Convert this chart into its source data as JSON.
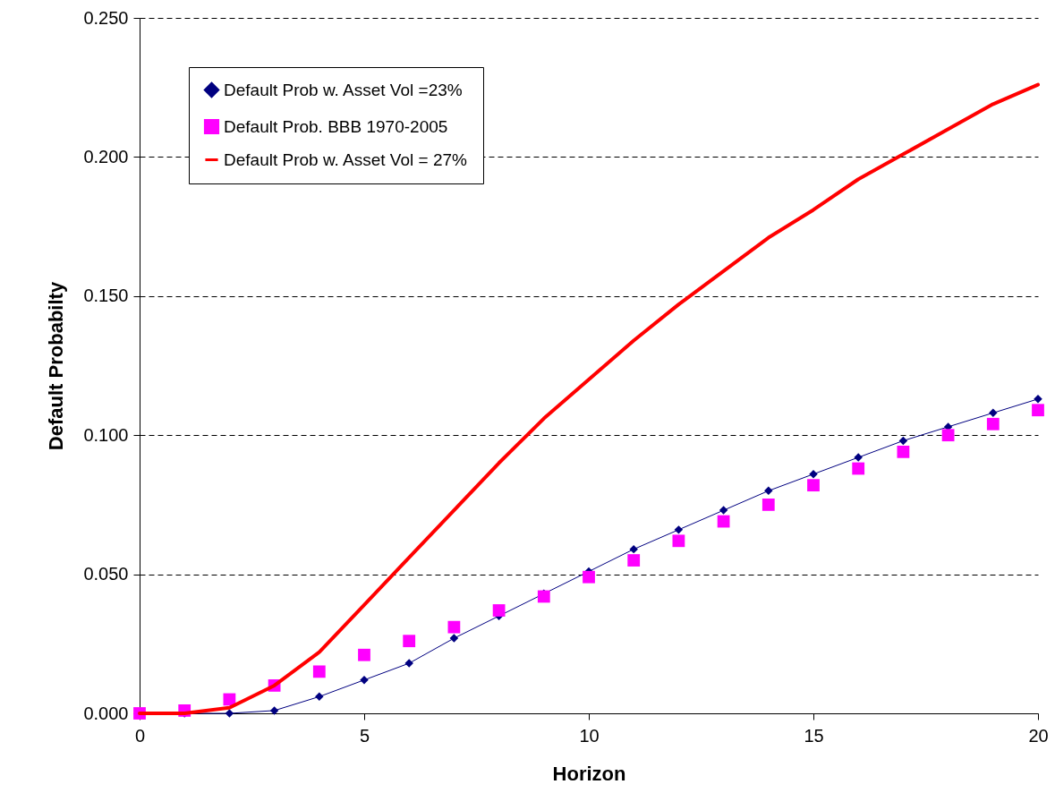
{
  "chart_data": {
    "type": "line",
    "xlabel": "Horizon",
    "ylabel": "Default Probabilty",
    "x": [
      0,
      1,
      2,
      3,
      4,
      5,
      6,
      7,
      8,
      9,
      10,
      11,
      12,
      13,
      14,
      15,
      16,
      17,
      18,
      19,
      20
    ],
    "series": [
      {
        "name": "Default Prob w. Asset Vol =23%",
        "marker": "diamond",
        "color": "#000080",
        "values": [
          0,
          0,
          0,
          0.001,
          0.006,
          0.012,
          0.018,
          0.027,
          0.035,
          0.043,
          0.051,
          0.059,
          0.066,
          0.073,
          0.08,
          0.086,
          0.092,
          0.098,
          0.103,
          0.108,
          0.113
        ]
      },
      {
        "name": "Default Prob. BBB 1970-2005",
        "type": "scatter",
        "marker": "square",
        "color": "#ff00ff",
        "values": [
          0,
          0.001,
          0.005,
          0.01,
          0.015,
          0.021,
          0.026,
          0.031,
          0.037,
          0.042,
          0.049,
          0.055,
          0.062,
          0.069,
          0.075,
          0.082,
          0.088,
          0.094,
          0.1,
          0.104,
          0.109
        ]
      },
      {
        "name": "Default Prob w. Asset Vol = 27%",
        "marker": "none",
        "color": "#ff0000",
        "values": [
          0,
          0,
          0.002,
          0.01,
          0.022,
          0.039,
          0.056,
          0.073,
          0.09,
          0.106,
          0.12,
          0.134,
          0.147,
          0.159,
          0.171,
          0.181,
          0.192,
          0.201,
          0.21,
          0.219,
          0.226
        ]
      }
    ],
    "xlim": [
      0,
      20
    ],
    "xticks": [
      0,
      5,
      10,
      15,
      20
    ],
    "ylim": [
      0,
      0.25
    ],
    "yticks": [
      {
        "value": 0,
        "label": "0.000"
      },
      {
        "value": 0.05,
        "label": "0.050"
      },
      {
        "value": 0.1,
        "label": "0.100"
      },
      {
        "value": 0.15,
        "label": "0.150"
      },
      {
        "value": 0.2,
        "label": "0.200"
      },
      {
        "value": 0.25,
        "label": "0.250"
      }
    ],
    "grid": "y",
    "legend": "top left"
  }
}
